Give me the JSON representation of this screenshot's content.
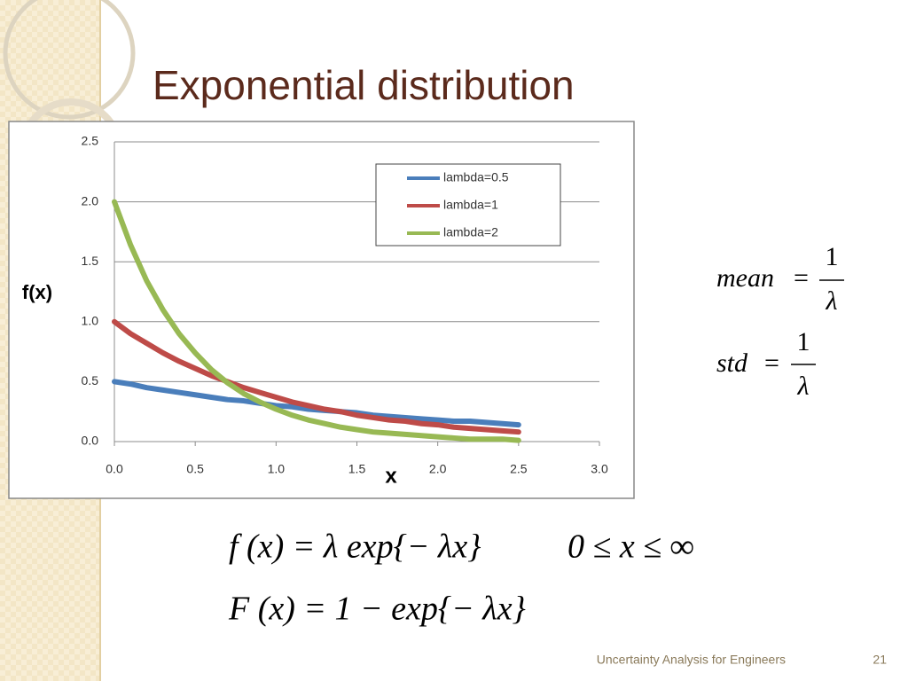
{
  "slide_title": "Exponential distribution",
  "chart_data": {
    "type": "line",
    "x": [
      0,
      0.1,
      0.2,
      0.3,
      0.4,
      0.5,
      0.6,
      0.7,
      0.8,
      0.9,
      1,
      1.1,
      1.2,
      1.3,
      1.4,
      1.5,
      1.6,
      1.7,
      1.8,
      1.9,
      2,
      2.1,
      2.2,
      2.3,
      2.4,
      2.5
    ],
    "series": [
      {
        "name": "lambda=0.5",
        "color": "#4a7ebb",
        "values": [
          0.5,
          0.48,
          0.45,
          0.43,
          0.41,
          0.39,
          0.37,
          0.35,
          0.34,
          0.32,
          0.3,
          0.29,
          0.27,
          0.26,
          0.25,
          0.24,
          0.22,
          0.21,
          0.2,
          0.19,
          0.18,
          0.17,
          0.17,
          0.16,
          0.15,
          0.14
        ]
      },
      {
        "name": "lambda=1",
        "color": "#be4b48",
        "values": [
          1,
          0.9,
          0.82,
          0.74,
          0.67,
          0.61,
          0.55,
          0.5,
          0.45,
          0.41,
          0.37,
          0.33,
          0.3,
          0.27,
          0.25,
          0.22,
          0.2,
          0.18,
          0.17,
          0.15,
          0.14,
          0.12,
          0.11,
          0.1,
          0.09,
          0.08
        ]
      },
      {
        "name": "lambda=2",
        "color": "#98b954",
        "values": [
          2,
          1.64,
          1.34,
          1.1,
          0.9,
          0.74,
          0.6,
          0.49,
          0.4,
          0.33,
          0.27,
          0.22,
          0.18,
          0.15,
          0.12,
          0.1,
          0.08,
          0.07,
          0.06,
          0.05,
          0.04,
          0.03,
          0.02,
          0.02,
          0.02,
          0.01
        ]
      }
    ],
    "xlabel": "x",
    "ylabel": "f(x)",
    "xlim": [
      0,
      3
    ],
    "xticks": [
      {
        "value": 0,
        "label": "0.0"
      },
      0.5,
      {
        "value": 1,
        "label": "1.0"
      },
      1.5,
      {
        "value": 2,
        "label": "2.0"
      },
      2.5,
      {
        "value": 3,
        "label": "3.0"
      }
    ],
    "ylim": [
      0,
      2.5
    ],
    "yticks": [
      {
        "value": 0,
        "label": "0.0"
      },
      0.5,
      {
        "value": 1,
        "label": "1.0"
      },
      1.5,
      {
        "value": 2,
        "label": "2.0"
      },
      2.5
    ],
    "grid": true,
    "legend": "upper right"
  },
  "formulas": {
    "mean": {
      "lhs": "mean",
      "eq": "=",
      "num": "1",
      "den": "λ"
    },
    "std": {
      "lhs": "std",
      "eq": "=",
      "num": "1",
      "den": "λ"
    },
    "pdf": "f (x) = λ exp{− λx}",
    "domain": "0 ≤ x ≤ ∞",
    "cdf": "F (x) = 1 − exp{− λx}"
  },
  "footer": {
    "course": "Uncertainty Analysis for Engineers",
    "page": "21"
  }
}
